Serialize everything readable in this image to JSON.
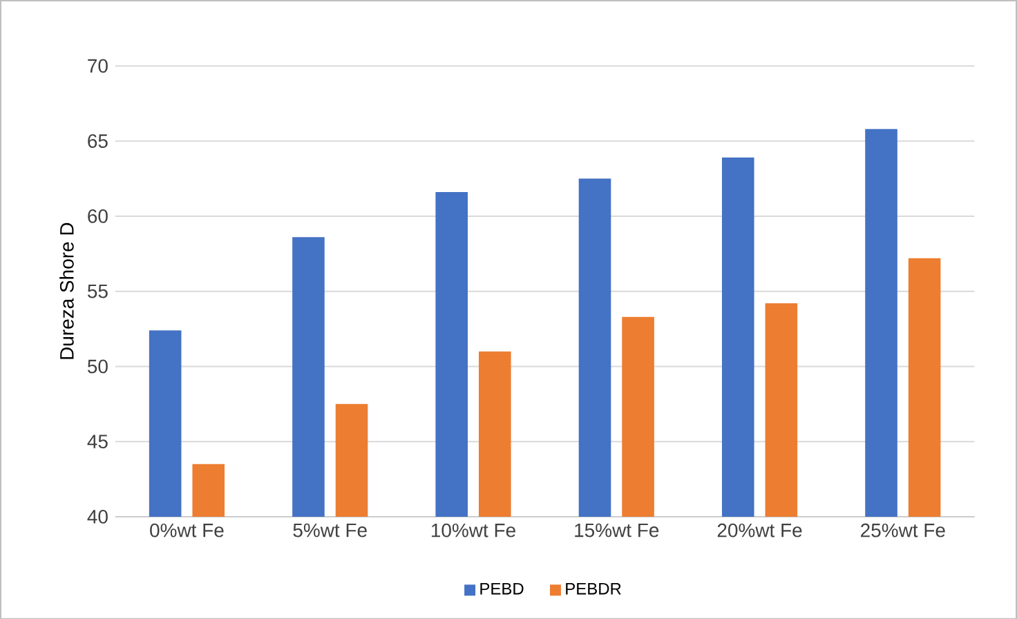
{
  "chart_data": {
    "type": "bar",
    "ylabel": "Dureza Shore D",
    "categories": [
      "0%wt Fe",
      "5%wt Fe",
      "10%wt Fe",
      "15%wt Fe",
      "20%wt Fe",
      "25%wt Fe"
    ],
    "series": [
      {
        "name": "PEBD",
        "color": "#4472c4",
        "values": [
          52.4,
          58.6,
          61.6,
          62.5,
          63.9,
          65.8
        ]
      },
      {
        "name": "PEBDR",
        "color": "#ed7d31",
        "values": [
          43.5,
          47.5,
          51.0,
          53.3,
          54.2,
          57.2
        ]
      }
    ],
    "ylim": [
      40,
      70
    ],
    "yticks": [
      40,
      45,
      50,
      55,
      60,
      65,
      70
    ],
    "grid": "y",
    "legend": "bottom"
  }
}
